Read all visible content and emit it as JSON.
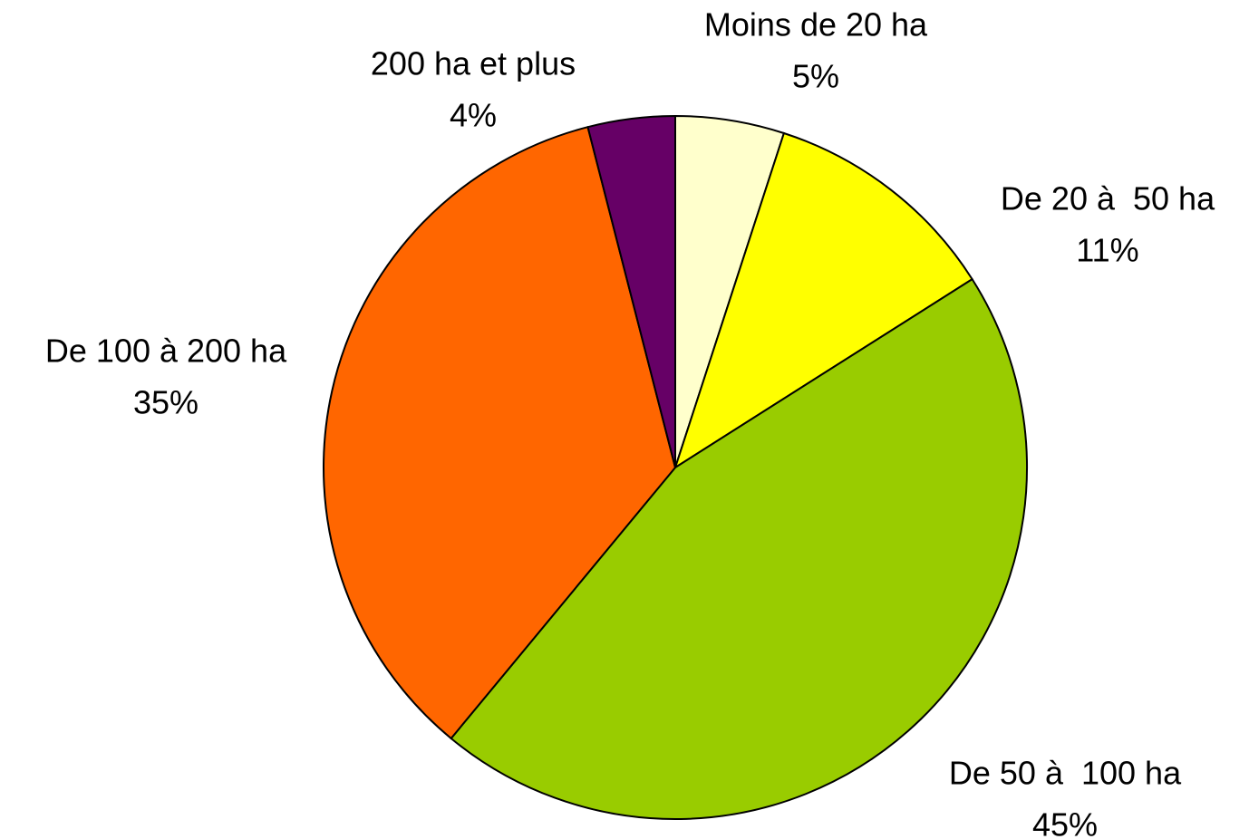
{
  "chart_data": {
    "type": "pie",
    "categories": [
      "Moins de 20 ha",
      "De 20 à  50 ha",
      "De 50 à  100 ha",
      "De 100 à 200 ha",
      "200 ha et plus"
    ],
    "values": [
      5,
      11,
      45,
      35,
      4
    ],
    "value_labels": [
      "5%",
      "11%",
      "45%",
      "35%",
      "4%"
    ],
    "colors": [
      "#ffffcc",
      "#ffff00",
      "#99cc00",
      "#ff6600",
      "#660066"
    ]
  }
}
